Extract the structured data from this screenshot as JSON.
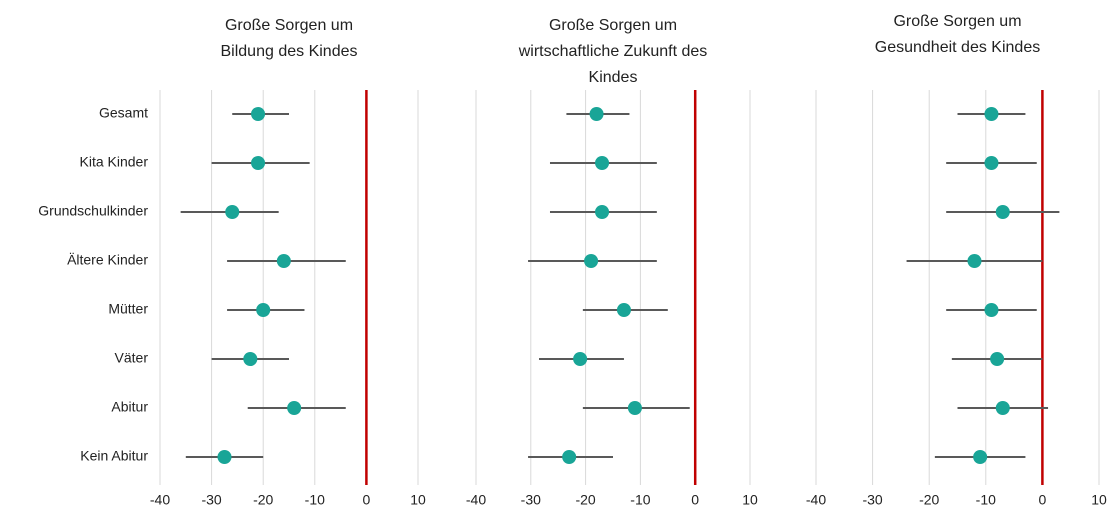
{
  "chart_data": [
    {
      "type": "dot",
      "title": [
        "Große Sorgen um",
        "Bildung des Kindes"
      ],
      "categories": [
        "Gesamt",
        "Kita Kinder",
        "Grundschulkinder",
        "Ältere Kinder",
        "Mütter",
        "Väter",
        "Abitur",
        "Kein Abitur"
      ],
      "values": [
        -21,
        -21,
        -26,
        -16,
        -20,
        -22.5,
        -14,
        -27.5
      ],
      "ci_low": [
        -26,
        -30,
        -36,
        -27,
        -27,
        -30,
        -23,
        -35
      ],
      "ci_high": [
        -15,
        -11,
        -17,
        -4,
        -12,
        -15,
        -4,
        -20
      ],
      "color": "#19a597",
      "error_color": "#595959",
      "xlim": [
        -40,
        10
      ],
      "xticks": [
        -40,
        -30,
        -20,
        -10,
        0,
        10
      ],
      "reference_line": {
        "value": 0,
        "color": "#c00000"
      },
      "grid": true
    },
    {
      "type": "dot",
      "title": [
        "Große Sorgen um",
        "wirtschaftliche Zukunft des",
        "Kindes"
      ],
      "values": [
        -18,
        -17,
        -17,
        -19,
        -13,
        -21,
        -11,
        -23
      ],
      "ci_low": [
        -23.5,
        -26.5,
        -26.5,
        -30.5,
        -20.5,
        -28.5,
        -20.5,
        -30.5
      ],
      "ci_high": [
        -12,
        -7,
        -7,
        -7,
        -5,
        -13,
        -1,
        -15
      ],
      "color": "#19a597",
      "error_color": "#595959",
      "xlim": [
        -40,
        10
      ],
      "xticks": [
        -40,
        -30,
        -20,
        -10,
        0,
        10
      ],
      "reference_line": {
        "value": 0,
        "color": "#c00000"
      },
      "grid": true
    },
    {
      "type": "dot",
      "title": [
        "Große Sorgen um",
        "Gesundheit des Kindes"
      ],
      "values": [
        -9,
        -9,
        -7,
        -12,
        -9,
        -8,
        -7,
        -11
      ],
      "ci_low": [
        -15,
        -17,
        -17,
        -24,
        -17,
        -16,
        -15,
        -19
      ],
      "ci_high": [
        -3,
        -1,
        3,
        0,
        -1,
        0,
        1,
        -3
      ],
      "color": "#19a597",
      "error_color": "#595959",
      "xlim": [
        -40,
        10
      ],
      "xticks": [
        -40,
        -30,
        -20,
        -10,
        0,
        10
      ],
      "reference_line": {
        "value": 0,
        "color": "#c00000"
      },
      "grid": true
    }
  ]
}
